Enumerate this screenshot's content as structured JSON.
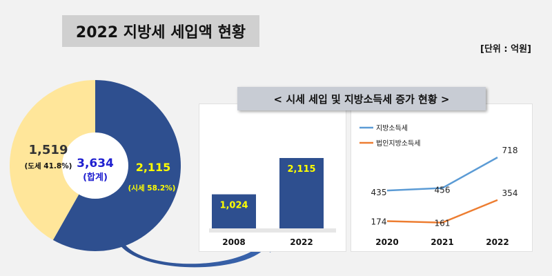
{
  "title": "2022 지방세 세입액 현황",
  "unit": "[단위 : 억원]",
  "subtitle": "< 시세 세입 및 지방소득세 증가 현황 >",
  "colors": {
    "navy": "#2e4f8f",
    "yellow": "#ffe69a",
    "blue_line": "#5b9bd5",
    "orange_line": "#ed7d31",
    "label_yellow": "#ffff00"
  },
  "chart_data": [
    {
      "type": "pie",
      "labels": [
        "도세",
        "시세"
      ],
      "values": [
        1519,
        2115
      ],
      "value_labels": [
        "1,519",
        "2,115"
      ],
      "pct_labels": [
        "(도세 41.8%)",
        "(시세 58.2%)"
      ],
      "center_value": "3,634",
      "center_label": "(합계)"
    },
    {
      "type": "bar",
      "categories": [
        "2008",
        "2022"
      ],
      "values": [
        1024,
        2115
      ],
      "value_labels": [
        "1,024",
        "2,115"
      ]
    },
    {
      "type": "line",
      "x": [
        "2020",
        "2021",
        "2022"
      ],
      "series": [
        {
          "name": "지방소득세",
          "values": [
            435,
            456,
            718
          ],
          "value_labels": [
            "435",
            "456",
            "718"
          ]
        },
        {
          "name": "법인지방소득세",
          "values": [
            174,
            161,
            354
          ],
          "value_labels": [
            "174",
            "161",
            "354"
          ]
        }
      ]
    }
  ]
}
